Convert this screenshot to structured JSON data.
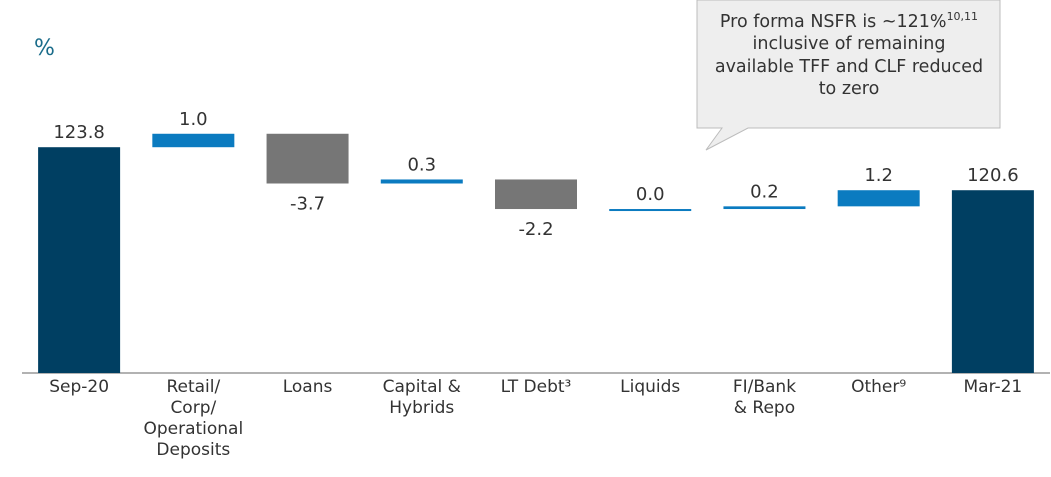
{
  "chart_data": {
    "type": "waterfall",
    "unit_label": "%",
    "categories": [
      "Sep-20",
      "Retail/\nCorp/\nOperational\nDeposits",
      "Loans",
      "Capital &\nHybrids",
      "LT Debt³",
      "Liquids",
      "FI/Bank\n& Repo",
      "Other⁹",
      "Mar-21"
    ],
    "measure": [
      "absolute",
      "relative",
      "relative",
      "relative",
      "relative",
      "relative",
      "relative",
      "relative",
      "total"
    ],
    "values": [
      123.8,
      1.0,
      -3.7,
      0.3,
      -2.2,
      0.0,
      0.2,
      1.2,
      120.6
    ],
    "value_labels": [
      "123.8",
      "1.0",
      "-3.7",
      "0.3",
      "-2.2",
      "0.0",
      "0.2",
      "1.2",
      "120.6"
    ],
    "colors": {
      "total": "#003f62",
      "increase": "#0b7bc0",
      "decrease": "#767676"
    },
    "ylim": [
      107,
      132
    ],
    "annotation": {
      "text": "Pro forma NSFR is ~121%",
      "superscript": "10,11",
      "text_after": "inclusive of remaining available TFF and CLF reduced to zero"
    }
  }
}
